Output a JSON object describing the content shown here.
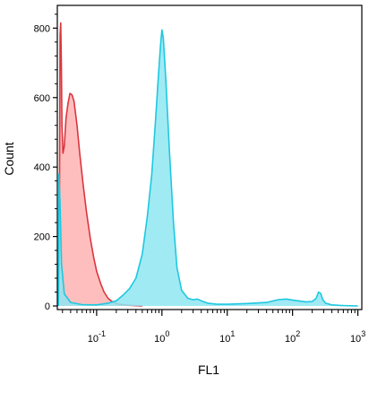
{
  "chart_data": {
    "type": "area",
    "title": "",
    "xlabel": "FL1",
    "ylabel": "Count",
    "x_scale": "log",
    "xlim": [
      0.025,
      1150
    ],
    "ylim": [
      0,
      850
    ],
    "y_ticks": [
      0,
      200,
      400,
      600,
      800
    ],
    "x_major_ticks": [
      {
        "value": 0.1,
        "base": "10",
        "exp": "-1"
      },
      {
        "value": 1,
        "base": "10",
        "exp": "0"
      },
      {
        "value": 10,
        "base": "10",
        "exp": "1"
      },
      {
        "value": 100,
        "base": "10",
        "exp": "2"
      },
      {
        "value": 1000,
        "base": "10",
        "exp": "3"
      }
    ],
    "grid": false,
    "legend": "none",
    "series": [
      {
        "stroke": "#d9363e",
        "fill": "#ffb3b3",
        "points": [
          [
            0.026,
            0
          ],
          [
            0.0268,
            150
          ],
          [
            0.0272,
            520
          ],
          [
            0.0276,
            780
          ],
          [
            0.0282,
            815
          ],
          [
            0.0288,
            700
          ],
          [
            0.0295,
            520
          ],
          [
            0.0305,
            440
          ],
          [
            0.032,
            460
          ],
          [
            0.034,
            540
          ],
          [
            0.0365,
            585
          ],
          [
            0.039,
            612
          ],
          [
            0.042,
            608
          ],
          [
            0.045,
            590
          ],
          [
            0.05,
            520
          ],
          [
            0.055,
            440
          ],
          [
            0.062,
            350
          ],
          [
            0.07,
            270
          ],
          [
            0.08,
            195
          ],
          [
            0.09,
            140
          ],
          [
            0.1,
            100
          ],
          [
            0.115,
            65
          ],
          [
            0.13,
            40
          ],
          [
            0.15,
            22
          ],
          [
            0.18,
            10
          ],
          [
            0.22,
            5
          ],
          [
            0.3,
            2
          ],
          [
            0.5,
            0
          ]
        ]
      },
      {
        "stroke": "#1ec8e0",
        "fill": "#8fe6f2",
        "points": [
          [
            0.026,
            0
          ],
          [
            0.0265,
            380
          ],
          [
            0.0275,
            300
          ],
          [
            0.029,
            120
          ],
          [
            0.032,
            35
          ],
          [
            0.04,
            10
          ],
          [
            0.06,
            4
          ],
          [
            0.1,
            3
          ],
          [
            0.15,
            8
          ],
          [
            0.2,
            15
          ],
          [
            0.25,
            30
          ],
          [
            0.32,
            50
          ],
          [
            0.4,
            80
          ],
          [
            0.5,
            150
          ],
          [
            0.6,
            260
          ],
          [
            0.7,
            380
          ],
          [
            0.8,
            540
          ],
          [
            0.88,
            660
          ],
          [
            0.95,
            750
          ],
          [
            1.0,
            795
          ],
          [
            1.05,
            770
          ],
          [
            1.15,
            650
          ],
          [
            1.3,
            450
          ],
          [
            1.5,
            240
          ],
          [
            1.7,
            110
          ],
          [
            2.0,
            45
          ],
          [
            2.5,
            22
          ],
          [
            3.0,
            18
          ],
          [
            3.5,
            20
          ],
          [
            4.0,
            15
          ],
          [
            5.0,
            8
          ],
          [
            7.0,
            5
          ],
          [
            10,
            5
          ],
          [
            20,
            7
          ],
          [
            40,
            10
          ],
          [
            60,
            18
          ],
          [
            80,
            20
          ],
          [
            100,
            17
          ],
          [
            130,
            14
          ],
          [
            160,
            12
          ],
          [
            200,
            13
          ],
          [
            230,
            22
          ],
          [
            250,
            40
          ],
          [
            270,
            36
          ],
          [
            290,
            18
          ],
          [
            320,
            8
          ],
          [
            400,
            3
          ],
          [
            600,
            1
          ],
          [
            1000,
            0
          ]
        ]
      }
    ]
  }
}
